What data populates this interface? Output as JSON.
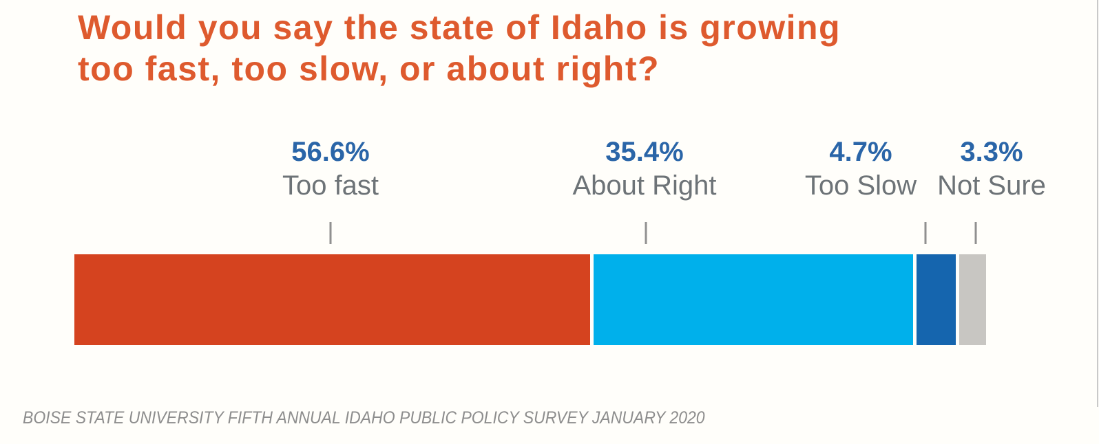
{
  "title": {
    "text": "Would you say the state of Idaho is growing too fast, too slow, or about right?",
    "lines": [
      "Would you say the state of Idaho is growing",
      "too fast, too slow, or about right?"
    ]
  },
  "chart_data": {
    "type": "bar",
    "orientation": "horizontal",
    "stacked": true,
    "title": "Would you say the state of Idaho is growing too fast, too slow, or about right?",
    "categories": [
      "Too fast",
      "About Right",
      "Too Slow",
      "Not Sure"
    ],
    "values": [
      56.6,
      35.4,
      4.7,
      3.3
    ],
    "value_labels": [
      "56.6%",
      "35.4%",
      "4.7%",
      "3.3%"
    ],
    "segment_colors": [
      "#d5431f",
      "#00b0eb",
      "#1565ae",
      "#c8c6c2"
    ],
    "xlim": [
      0,
      100
    ],
    "grid": false,
    "legend": "none",
    "source": "BOISE STATE UNIVERSITY FIFTH ANNUAL IDAHO PUBLIC POLICY SURVEY JANUARY 2020"
  },
  "colors": {
    "title": "#de5a2e",
    "value_label": "#2a65a8",
    "category_label": "#6d7377",
    "tick": "#909090",
    "source": "#8d8d8d",
    "background": "#fffefa"
  }
}
